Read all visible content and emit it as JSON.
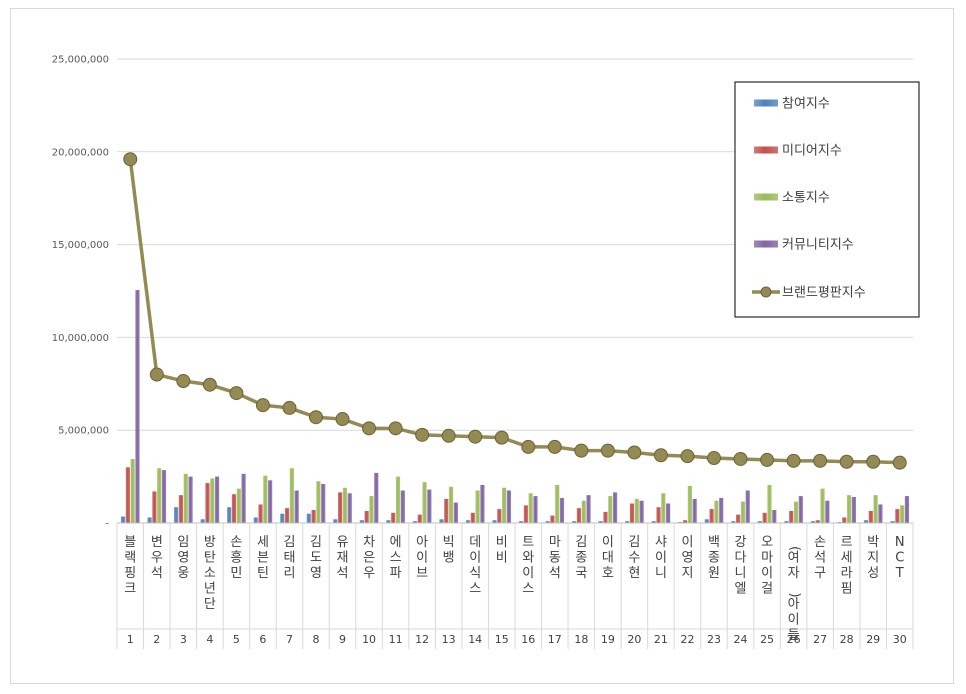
{
  "chart_data": {
    "type": "bar",
    "title": "",
    "xlabel": "",
    "ylabel": "",
    "ylim": [
      0,
      25000000
    ],
    "yticks": [
      0,
      5000000,
      10000000,
      15000000,
      20000000,
      25000000
    ],
    "ytick_labels": [
      "-",
      "5,000,000",
      "10,000,000",
      "15,000,000",
      "20,000,000",
      "25,000,000"
    ],
    "legend_position": "top-right",
    "grid": true,
    "categories": [
      "블랙핑크",
      "변우석",
      "임영웅",
      "방탄소년단",
      "손흥민",
      "세븐틴",
      "김태리",
      "김도영",
      "유재석",
      "차은우",
      "에스파",
      "아이브",
      "빅뱅",
      "데이식스",
      "비비",
      "트와이스",
      "마동석",
      "김종국",
      "이대호",
      "김수현",
      "샤이니",
      "이영지",
      "백종원",
      "강다니엘",
      "오마이걸",
      "(여자)아이들",
      "손석구",
      "르세라핌",
      "박지성",
      "NCT"
    ],
    "ranks": [
      "1",
      "2",
      "3",
      "4",
      "5",
      "6",
      "7",
      "8",
      "9",
      "10",
      "11",
      "12",
      "13",
      "14",
      "15",
      "16",
      "17",
      "18",
      "19",
      "20",
      "21",
      "22",
      "23",
      "24",
      "25",
      "26",
      "27",
      "28",
      "29",
      "30"
    ],
    "series": [
      {
        "name": "참여지수",
        "type": "bar",
        "color": "#4f81bd",
        "values": [
          350000,
          300000,
          850000,
          200000,
          850000,
          300000,
          500000,
          500000,
          200000,
          150000,
          150000,
          100000,
          200000,
          150000,
          150000,
          100000,
          100000,
          100000,
          100000,
          100000,
          100000,
          50000,
          200000,
          100000,
          100000,
          100000,
          100000,
          50000,
          150000,
          100000
        ]
      },
      {
        "name": "미디어지수",
        "type": "bar",
        "color": "#c0504d",
        "values": [
          3000000,
          1700000,
          1500000,
          2150000,
          1550000,
          1000000,
          800000,
          700000,
          1650000,
          650000,
          550000,
          450000,
          1300000,
          550000,
          750000,
          950000,
          400000,
          800000,
          600000,
          1050000,
          850000,
          150000,
          750000,
          450000,
          550000,
          650000,
          150000,
          300000,
          650000,
          750000
        ]
      },
      {
        "name": "소통지수",
        "type": "bar",
        "color": "#9bbb59",
        "values": [
          3450000,
          2950000,
          2650000,
          2400000,
          1850000,
          2550000,
          2950000,
          2250000,
          1900000,
          1450000,
          2500000,
          2200000,
          1950000,
          1750000,
          1900000,
          1600000,
          2050000,
          1200000,
          1450000,
          1300000,
          1600000,
          2000000,
          1200000,
          1150000,
          2050000,
          1150000,
          1850000,
          1500000,
          1500000,
          950000
        ]
      },
      {
        "name": "커뮤니티지수",
        "type": "bar",
        "color": "#8064a2",
        "values": [
          12550000,
          2850000,
          2500000,
          2500000,
          2650000,
          2300000,
          1750000,
          2100000,
          1600000,
          2700000,
          1750000,
          1800000,
          1100000,
          2050000,
          1750000,
          1450000,
          1350000,
          1500000,
          1650000,
          1200000,
          1050000,
          1300000,
          1350000,
          1750000,
          700000,
          1450000,
          1200000,
          1400000,
          1000000,
          1450000
        ]
      },
      {
        "name": "브랜드평판지수",
        "type": "line",
        "color": "#948a54",
        "values": [
          19600000,
          8000000,
          7650000,
          7450000,
          7000000,
          6350000,
          6200000,
          5700000,
          5600000,
          5100000,
          5100000,
          4750000,
          4700000,
          4650000,
          4600000,
          4100000,
          4100000,
          3900000,
          3900000,
          3800000,
          3650000,
          3600000,
          3500000,
          3450000,
          3400000,
          3350000,
          3350000,
          3300000,
          3300000,
          3250000
        ]
      }
    ]
  }
}
